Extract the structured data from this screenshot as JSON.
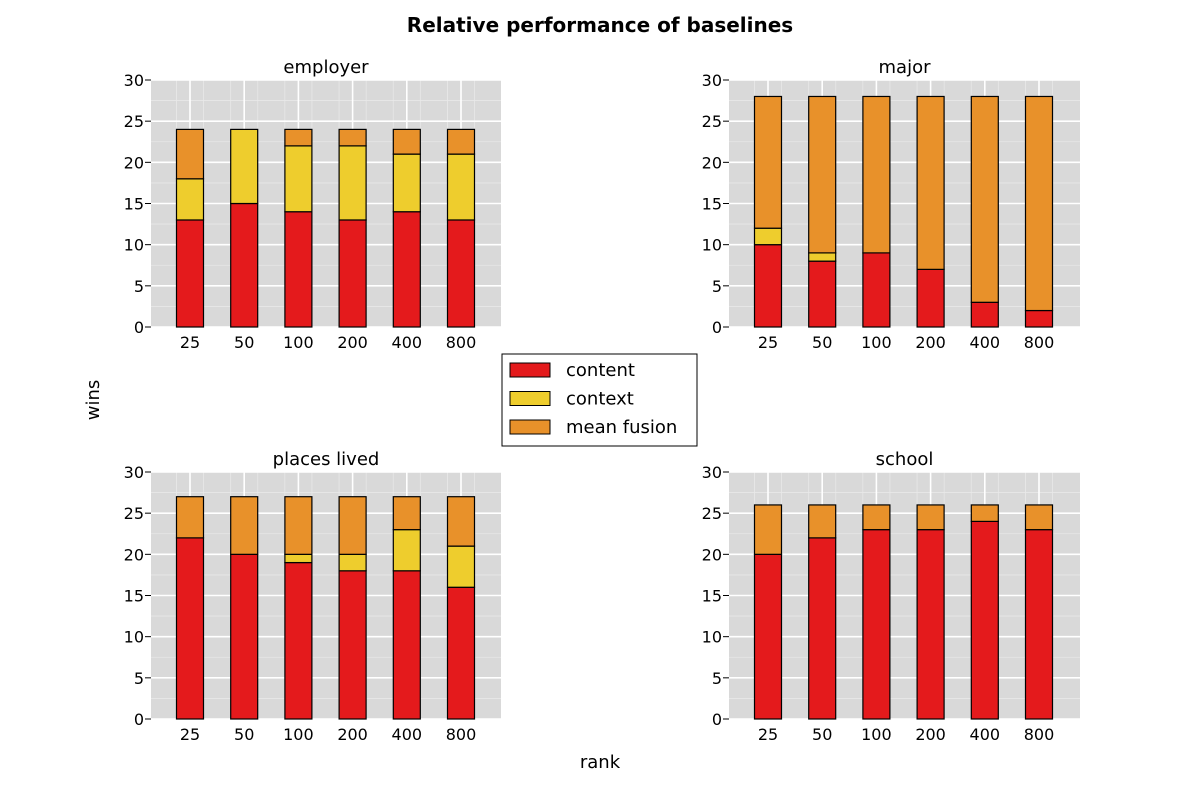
{
  "chart_data": {
    "type": "bar",
    "stacked": true,
    "title": "Relative performance of baselines",
    "xlabel": "rank",
    "ylabel": "wins",
    "categories": [
      "25",
      "50",
      "100",
      "200",
      "400",
      "800"
    ],
    "ylim": [
      0,
      30
    ],
    "yticks": [
      0,
      5,
      10,
      15,
      20,
      25,
      30
    ],
    "grid": true,
    "legend_position": "center",
    "series_names": [
      "content",
      "context",
      "mean fusion"
    ],
    "colors": [
      "#e41a1c",
      "#eecd2d",
      "#e8912a"
    ],
    "subplots": [
      {
        "title": "employer",
        "series": [
          {
            "name": "content",
            "values": [
              13,
              15,
              14,
              13,
              14,
              13
            ]
          },
          {
            "name": "context",
            "values": [
              5,
              9,
              8,
              9,
              7,
              8
            ]
          },
          {
            "name": "mean fusion",
            "values": [
              6,
              0,
              2,
              2,
              3,
              3
            ]
          }
        ]
      },
      {
        "title": "major",
        "series": [
          {
            "name": "content",
            "values": [
              10,
              8,
              9,
              7,
              3,
              2
            ]
          },
          {
            "name": "context",
            "values": [
              2,
              1,
              0,
              0,
              0,
              0
            ]
          },
          {
            "name": "mean fusion",
            "values": [
              16,
              19,
              19,
              21,
              25,
              26
            ]
          }
        ]
      },
      {
        "title": "places lived",
        "series": [
          {
            "name": "content",
            "values": [
              22,
              20,
              19,
              18,
              18,
              16
            ]
          },
          {
            "name": "context",
            "values": [
              0,
              0,
              1,
              2,
              5,
              5
            ]
          },
          {
            "name": "mean fusion",
            "values": [
              5,
              7,
              7,
              7,
              4,
              6
            ]
          }
        ]
      },
      {
        "title": "school",
        "series": [
          {
            "name": "content",
            "values": [
              20,
              22,
              23,
              23,
              24,
              23
            ]
          },
          {
            "name": "context",
            "values": [
              0,
              0,
              0,
              0,
              0,
              0
            ]
          },
          {
            "name": "mean fusion",
            "values": [
              6,
              4,
              3,
              3,
              2,
              3
            ]
          }
        ]
      }
    ]
  }
}
